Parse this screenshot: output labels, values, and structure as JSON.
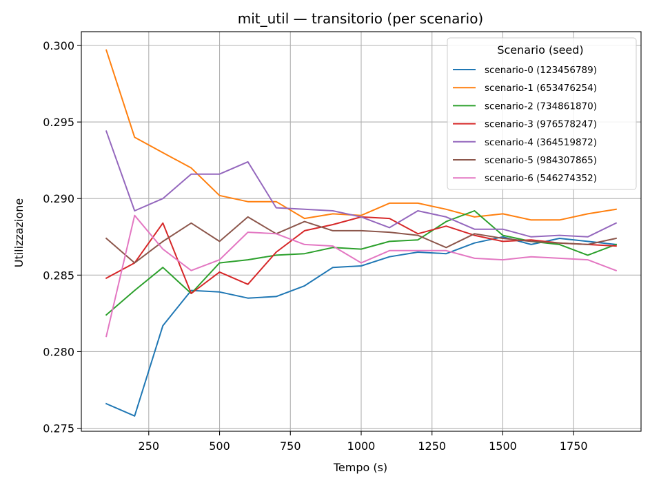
{
  "chart_data": {
    "type": "line",
    "title": "mit_util — transitorio (per scenario)",
    "xlabel": "Tempo (s)",
    "ylabel": "Utilizzazione",
    "xlim": [
      12,
      1988
    ],
    "ylim": [
      0.2748,
      0.3009
    ],
    "xticks": [
      250,
      500,
      750,
      1000,
      1250,
      1500,
      1750
    ],
    "xtick_labels": [
      "250",
      "500",
      "750",
      "1000",
      "1250",
      "1500",
      "1750"
    ],
    "yticks": [
      0.275,
      0.28,
      0.285,
      0.29,
      0.295,
      0.3
    ],
    "ytick_labels": [
      "0.275",
      "0.280",
      "0.285",
      "0.290",
      "0.295",
      "0.300"
    ],
    "grid": true,
    "legend": {
      "title": "Scenario (seed)",
      "position": "top-right"
    },
    "x": [
      100,
      200,
      300,
      400,
      500,
      600,
      700,
      800,
      900,
      1000,
      1100,
      1200,
      1300,
      1400,
      1500,
      1600,
      1700,
      1800,
      1900
    ],
    "series": [
      {
        "name": "scenario-0 (123456789)",
        "color": "#1f77b4",
        "values": [
          0.2766,
          0.2758,
          0.2817,
          0.284,
          0.2839,
          0.2835,
          0.2836,
          0.2843,
          0.2855,
          0.2856,
          0.2862,
          0.2865,
          0.2864,
          0.2871,
          0.2875,
          0.287,
          0.2874,
          0.2872,
          0.287
        ]
      },
      {
        "name": "scenario-1 (653476254)",
        "color": "#ff7f0e",
        "values": [
          0.2997,
          0.294,
          0.293,
          0.292,
          0.2902,
          0.2898,
          0.2898,
          0.2887,
          0.289,
          0.2889,
          0.2897,
          0.2897,
          0.2893,
          0.2888,
          0.289,
          0.2886,
          0.2886,
          0.289,
          0.2893
        ]
      },
      {
        "name": "scenario-2 (734861870)",
        "color": "#2ca02c",
        "values": [
          0.2824,
          0.284,
          0.2855,
          0.2838,
          0.2858,
          0.286,
          0.2863,
          0.2864,
          0.2868,
          0.2867,
          0.2872,
          0.2873,
          0.2885,
          0.2892,
          0.2876,
          0.2872,
          0.287,
          0.2863,
          0.287
        ]
      },
      {
        "name": "scenario-3 (976578247)",
        "color": "#d62728",
        "values": [
          0.2848,
          0.2858,
          0.2884,
          0.2838,
          0.2852,
          0.2844,
          0.2865,
          0.2879,
          0.2883,
          0.2888,
          0.2887,
          0.2877,
          0.2882,
          0.2876,
          0.2872,
          0.2873,
          0.2871,
          0.287,
          0.2869
        ]
      },
      {
        "name": "scenario-4 (364519872)",
        "color": "#9467bd",
        "values": [
          0.2944,
          0.2892,
          0.29,
          0.2916,
          0.2916,
          0.2924,
          0.2894,
          0.2893,
          0.2892,
          0.2888,
          0.2881,
          0.2892,
          0.2888,
          0.288,
          0.288,
          0.2875,
          0.2876,
          0.2875,
          0.2884
        ]
      },
      {
        "name": "scenario-5 (984307865)",
        "color": "#8c564b",
        "values": [
          0.2874,
          0.2858,
          0.2872,
          0.2884,
          0.2872,
          0.2888,
          0.2877,
          0.2885,
          0.2879,
          0.2879,
          0.2878,
          0.2876,
          0.2868,
          0.2877,
          0.2874,
          0.2872,
          0.2871,
          0.287,
          0.2874
        ]
      },
      {
        "name": "scenario-6 (546274352)",
        "color": "#e377c2",
        "values": [
          0.281,
          0.2889,
          0.2867,
          0.2853,
          0.286,
          0.2878,
          0.2877,
          0.287,
          0.2869,
          0.2858,
          0.2866,
          0.2866,
          0.2866,
          0.2861,
          0.286,
          0.2862,
          0.2861,
          0.286,
          0.2853
        ]
      }
    ]
  }
}
